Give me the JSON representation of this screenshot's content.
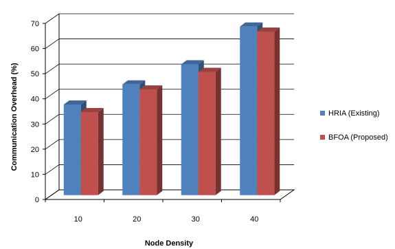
{
  "chart_data": {
    "type": "bar",
    "title": "",
    "xlabel": "Node Density",
    "ylabel": "Communication Overhead (%)",
    "categories": [
      "10",
      "20",
      "30",
      "40"
    ],
    "series": [
      {
        "name": "HRIA (Existing)",
        "values": [
          36,
          44,
          52,
          67
        ],
        "color": "#4f81bd"
      },
      {
        "name": "BFOA (Proposed)",
        "values": [
          33,
          42,
          49,
          65
        ],
        "color": "#c0504d"
      }
    ],
    "ylim": [
      0,
      70
    ],
    "yticks": [
      "0",
      "10",
      "20",
      "30",
      "40",
      "50",
      "60",
      "70"
    ],
    "grid": true,
    "legend_position": "right",
    "style": "3d-clustered-column"
  }
}
